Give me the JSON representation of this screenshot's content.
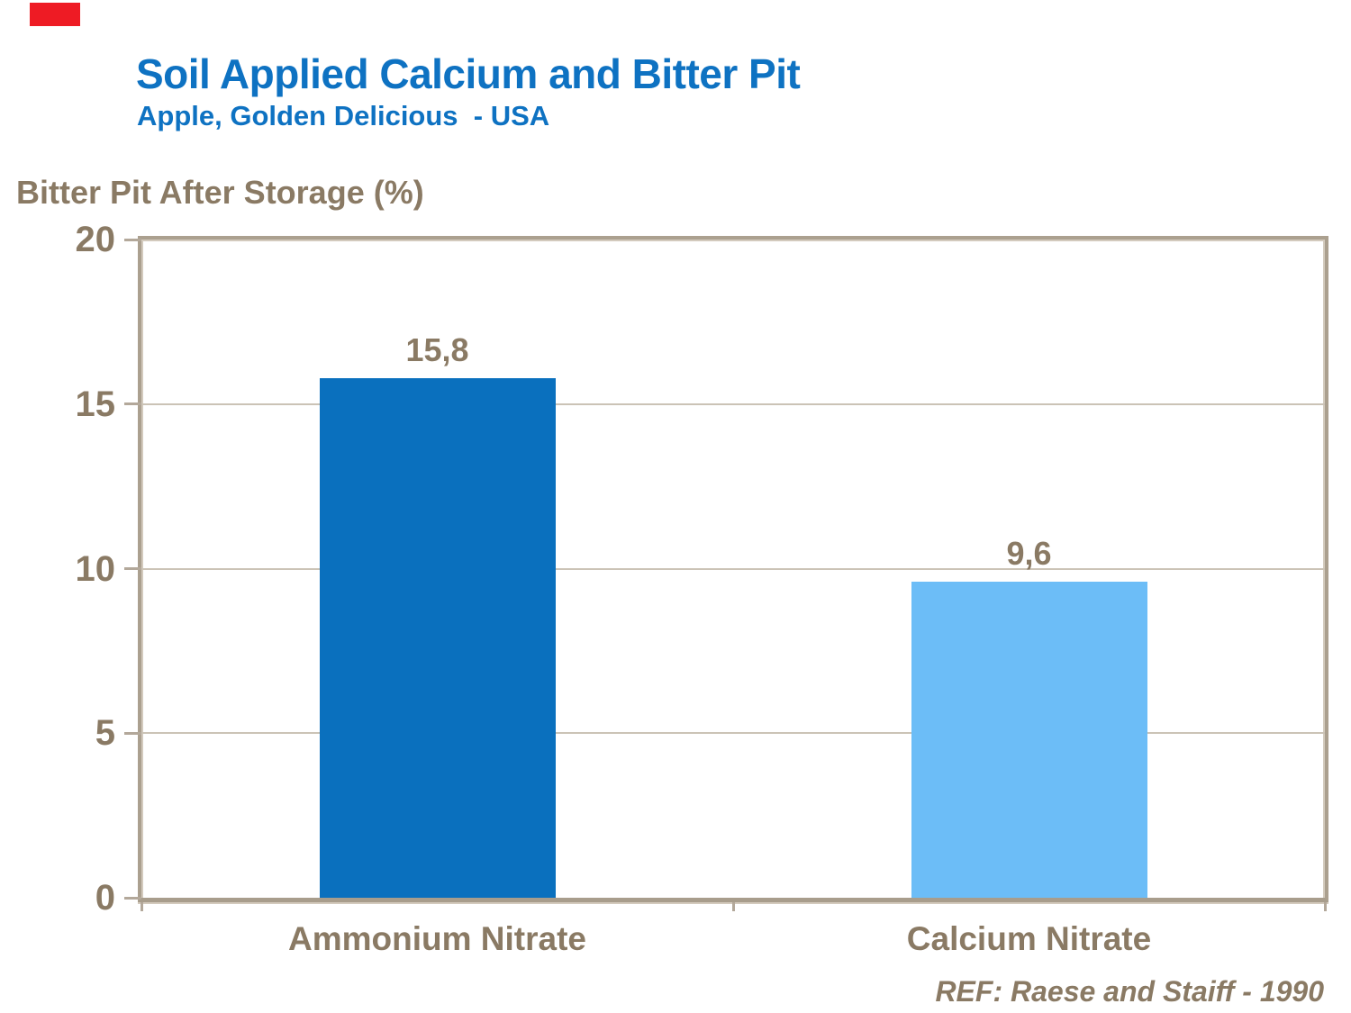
{
  "decor": {
    "corner_mark_color": "#ee1b24"
  },
  "palette": {
    "title_blue": "#0e72c2",
    "text_brown": "#8a7a64",
    "frame_taupe": "#aba08f",
    "gridline": "#cbc3b6"
  },
  "chart_data": {
    "type": "bar",
    "title": "Soil Applied Calcium and Bitter Pit",
    "subtitle": "Apple, Golden Delicious  - USA",
    "axis_title": "Bitter Pit After Storage (%)",
    "xlabel": "",
    "ylabel": "Bitter Pit After Storage (%)",
    "categories": [
      "Ammonium Nitrate",
      "Calcium Nitrate"
    ],
    "values": [
      15.8,
      9.6
    ],
    "value_labels": [
      "15,8",
      "9,6"
    ],
    "bar_colors": [
      "#0a70be",
      "#6cbdf7"
    ],
    "ylim": [
      0,
      20
    ],
    "yticks": [
      0,
      5,
      10,
      15,
      20
    ],
    "ytick_labels": [
      "0",
      "5",
      "10",
      "15",
      "20"
    ],
    "grid": true,
    "legend": false
  },
  "footer": {
    "reference": "REF: Raese and Staiff - 1990"
  }
}
